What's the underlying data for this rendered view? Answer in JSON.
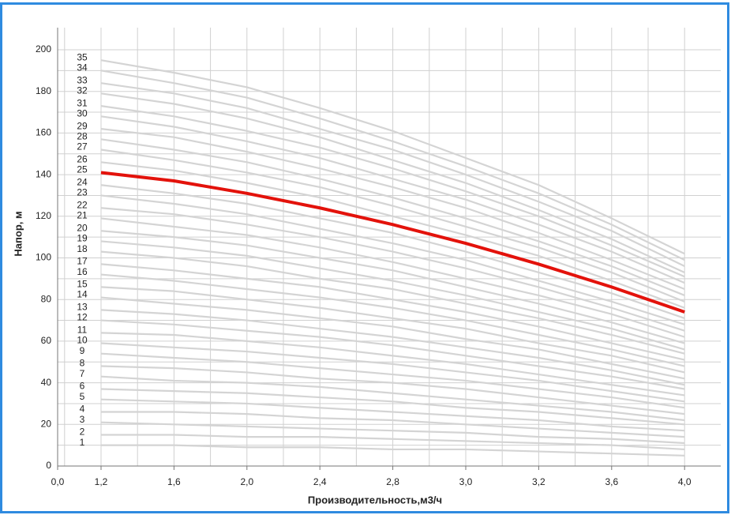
{
  "chart_data": {
    "type": "line",
    "x_label": "Производительность,м3/ч",
    "y_label": "Напор, м",
    "categories": [
      "0,0",
      "1,2",
      "1,6",
      "2,0",
      "2,4",
      "2,8",
      "3,0",
      "3,2",
      "3,6",
      "4,0"
    ],
    "ylim": [
      0,
      200
    ],
    "yticks": [
      0,
      20,
      40,
      60,
      80,
      100,
      120,
      140,
      160,
      180,
      200
    ],
    "grid": true,
    "series": [
      {
        "name": "1",
        "color": "#d4d4d4",
        "values": [
          null,
          10,
          10,
          9,
          9,
          8,
          8,
          7,
          6,
          5
        ]
      },
      {
        "name": "2",
        "color": "#d4d4d4",
        "values": [
          null,
          15,
          15,
          14,
          14,
          13,
          12,
          11,
          10,
          8
        ]
      },
      {
        "name": "3",
        "color": "#d4d4d4",
        "values": [
          null,
          21,
          20,
          19,
          18,
          17,
          16,
          14,
          13,
          11
        ]
      },
      {
        "name": "4",
        "color": "#d4d4d4",
        "values": [
          null,
          26,
          26,
          25,
          23,
          22,
          20,
          18,
          16,
          14
        ]
      },
      {
        "name": "5",
        "color": "#d4d4d4",
        "values": [
          null,
          32,
          31,
          30,
          28,
          26,
          24,
          22,
          19,
          17
        ]
      },
      {
        "name": "6",
        "color": "#d4d4d4",
        "values": [
          null,
          37,
          36,
          35,
          33,
          31,
          28,
          26,
          23,
          20
        ]
      },
      {
        "name": "7",
        "color": "#d4d4d4",
        "values": [
          null,
          43,
          41,
          40,
          38,
          35,
          32,
          29,
          26,
          22
        ]
      },
      {
        "name": "8",
        "color": "#d4d4d4",
        "values": [
          null,
          48,
          47,
          45,
          42,
          40,
          37,
          33,
          29,
          25
        ]
      },
      {
        "name": "9",
        "color": "#d4d4d4",
        "values": [
          null,
          54,
          52,
          50,
          47,
          44,
          41,
          37,
          33,
          28
        ]
      },
      {
        "name": "10",
        "color": "#d4d4d4",
        "values": [
          null,
          59,
          57,
          55,
          52,
          49,
          45,
          41,
          36,
          31
        ]
      },
      {
        "name": "11",
        "color": "#d4d4d4",
        "values": [
          null,
          64,
          63,
          60,
          57,
          53,
          49,
          44,
          39,
          34
        ]
      },
      {
        "name": "12",
        "color": "#d4d4d4",
        "values": [
          null,
          70,
          68,
          65,
          62,
          58,
          53,
          48,
          43,
          37
        ]
      },
      {
        "name": "13",
        "color": "#d4d4d4",
        "values": [
          null,
          75,
          73,
          70,
          66,
          62,
          57,
          52,
          46,
          39
        ]
      },
      {
        "name": "14",
        "color": "#d4d4d4",
        "values": [
          null,
          81,
          78,
          75,
          71,
          67,
          61,
          56,
          49,
          42
        ]
      },
      {
        "name": "15",
        "color": "#d4d4d4",
        "values": [
          null,
          86,
          84,
          80,
          76,
          71,
          66,
          59,
          53,
          45
        ]
      },
      {
        "name": "16",
        "color": "#d4d4d4",
        "values": [
          null,
          92,
          89,
          85,
          81,
          76,
          70,
          63,
          56,
          48
        ]
      },
      {
        "name": "17",
        "color": "#d4d4d4",
        "values": [
          null,
          97,
          94,
          90,
          86,
          80,
          74,
          67,
          59,
          51
        ]
      },
      {
        "name": "18",
        "color": "#d4d4d4",
        "values": [
          null,
          103,
          100,
          96,
          90,
          85,
          78,
          71,
          63,
          54
        ]
      },
      {
        "name": "19",
        "color": "#d4d4d4",
        "values": [
          null,
          108,
          105,
          101,
          95,
          89,
          82,
          74,
          66,
          56
        ]
      },
      {
        "name": "20",
        "color": "#d4d4d4",
        "values": [
          null,
          113,
          110,
          106,
          100,
          94,
          86,
          78,
          69,
          59
        ]
      },
      {
        "name": "21",
        "color": "#d4d4d4",
        "values": [
          null,
          119,
          115,
          111,
          105,
          98,
          90,
          82,
          73,
          62
        ]
      },
      {
        "name": "22",
        "color": "#d4d4d4",
        "values": [
          null,
          124,
          121,
          116,
          110,
          103,
          95,
          86,
          76,
          65
        ]
      },
      {
        "name": "23",
        "color": "#d4d4d4",
        "values": [
          null,
          130,
          126,
          121,
          114,
          107,
          99,
          89,
          79,
          68
        ]
      },
      {
        "name": "24",
        "color": "#d4d4d4",
        "values": [
          null,
          135,
          131,
          126,
          119,
          112,
          103,
          93,
          83,
          71
        ]
      },
      {
        "name": "25",
        "color": "#e3120b",
        "values": [
          null,
          141,
          137,
          131,
          124,
          116,
          107,
          97,
          86,
          74
        ]
      },
      {
        "name": "26",
        "color": "#d4d4d4",
        "values": [
          null,
          146,
          142,
          136,
          129,
          120,
          111,
          101,
          89,
          76
        ]
      },
      {
        "name": "27",
        "color": "#d4d4d4",
        "values": [
          null,
          152,
          147,
          141,
          134,
          125,
          115,
          105,
          93,
          79
        ]
      },
      {
        "name": "28",
        "color": "#d4d4d4",
        "values": [
          null,
          157,
          152,
          146,
          138,
          129,
          119,
          108,
          96,
          82
        ]
      },
      {
        "name": "29",
        "color": "#d4d4d4",
        "values": [
          null,
          162,
          158,
          151,
          143,
          134,
          124,
          112,
          99,
          85
        ]
      },
      {
        "name": "30",
        "color": "#d4d4d4",
        "values": [
          null,
          168,
          163,
          156,
          148,
          138,
          128,
          116,
          103,
          88
        ]
      },
      {
        "name": "31",
        "color": "#d4d4d4",
        "values": [
          null,
          173,
          168,
          161,
          153,
          143,
          132,
          120,
          106,
          91
        ]
      },
      {
        "name": "32",
        "color": "#d4d4d4",
        "values": [
          null,
          179,
          174,
          167,
          158,
          147,
          136,
          123,
          109,
          93
        ]
      },
      {
        "name": "33",
        "color": "#d4d4d4",
        "values": [
          null,
          184,
          179,
          172,
          162,
          152,
          140,
          127,
          113,
          96
        ]
      },
      {
        "name": "34",
        "color": "#d4d4d4",
        "values": [
          null,
          190,
          184,
          177,
          167,
          156,
          144,
          131,
          116,
          99
        ]
      },
      {
        "name": "35",
        "color": "#d4d4d4",
        "values": [
          null,
          195,
          189,
          182,
          172,
          161,
          148,
          135,
          119,
          102
        ]
      }
    ]
  }
}
